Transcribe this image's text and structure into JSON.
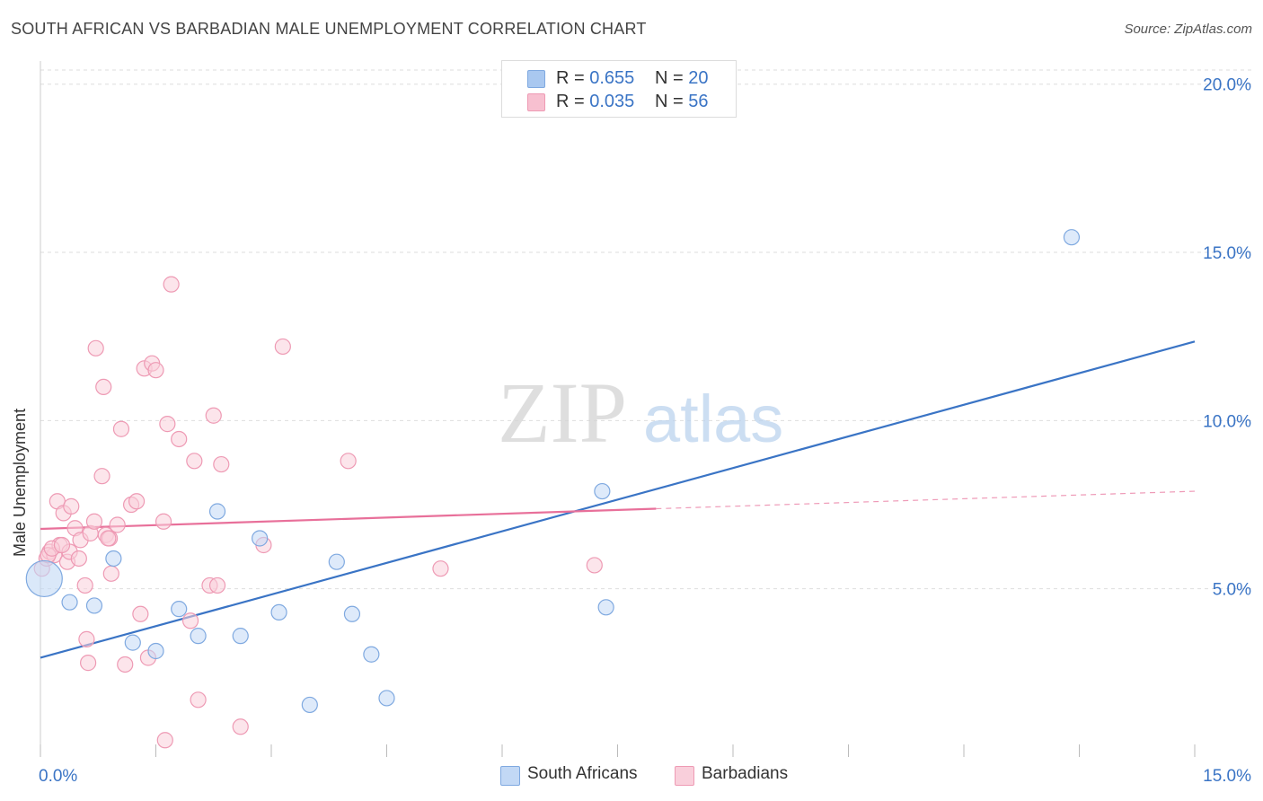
{
  "header": {
    "title": "SOUTH AFRICAN VS BARBADIAN MALE UNEMPLOYMENT CORRELATION CHART",
    "source": "Source: ZipAtlas.com"
  },
  "legend_top": {
    "rows": [
      {
        "r_label": "R =",
        "r_value": "0.655",
        "n_label": "N =",
        "n_value": "20",
        "color": "#a9c8f0",
        "border": "#7fa9e0"
      },
      {
        "r_label": "R =",
        "r_value": "0.035",
        "n_label": "N =",
        "n_value": "56",
        "color": "#f7c0d0",
        "border": "#ee9ab4"
      }
    ]
  },
  "legend_bottom": {
    "items": [
      {
        "label": "South Africans",
        "color": "#c2d8f5",
        "border": "#7fa9e0"
      },
      {
        "label": "Barbadians",
        "color": "#f9cfdb",
        "border": "#ee9ab4"
      }
    ]
  },
  "watermark": {
    "zip": "ZIP",
    "atlas": "atlas"
  },
  "chart_data": {
    "type": "scatter",
    "title": "SOUTH AFRICAN VS BARBADIAN MALE UNEMPLOYMENT CORRELATION CHART",
    "xlabel": "",
    "ylabel": "Male Unemployment",
    "xlim": [
      0,
      15
    ],
    "ylim": [
      0,
      20.5
    ],
    "x_tick_labels": [
      "0.0%",
      "15.0%"
    ],
    "y_ticks": [
      5,
      10,
      15,
      20
    ],
    "y_tick_labels": [
      "5.0%",
      "10.0%",
      "15.0%",
      "20.0%"
    ],
    "grid": true,
    "legend_position": "top-center",
    "colors": {
      "south_africans": "#3a74c5",
      "barbadians": "#e8709a"
    },
    "series": [
      {
        "name": "South Africans",
        "x": [
          0.05,
          0.38,
          0.7,
          0.95,
          1.2,
          1.5,
          1.8,
          2.05,
          2.3,
          2.6,
          2.85,
          3.1,
          3.5,
          3.85,
          4.05,
          4.3,
          4.5,
          7.3,
          7.35,
          13.4
        ],
        "y": [
          5.3,
          4.6,
          4.5,
          5.9,
          3.4,
          3.15,
          4.4,
          3.6,
          7.3,
          3.6,
          6.5,
          4.3,
          1.55,
          5.8,
          4.25,
          3.05,
          1.75,
          7.9,
          4.45,
          15.45
        ],
        "trend": {
          "x": [
            0,
            15
          ],
          "y": [
            2.95,
            12.35
          ]
        }
      },
      {
        "name": "Barbadians",
        "x": [
          0.02,
          0.08,
          0.12,
          0.18,
          0.22,
          0.25,
          0.3,
          0.35,
          0.38,
          0.4,
          0.45,
          0.5,
          0.52,
          0.58,
          0.6,
          0.65,
          0.7,
          0.72,
          0.8,
          0.82,
          0.85,
          0.9,
          0.92,
          1.0,
          1.05,
          1.1,
          1.18,
          1.25,
          1.3,
          1.35,
          1.4,
          1.45,
          1.6,
          1.62,
          1.65,
          1.8,
          1.95,
          2.0,
          2.05,
          2.2,
          2.25,
          2.3,
          2.35,
          2.6,
          2.9,
          3.15,
          4.0,
          5.2,
          7.2,
          0.1,
          0.15,
          0.28,
          0.62,
          0.88,
          1.5,
          1.7
        ],
        "y": [
          5.6,
          5.9,
          6.1,
          6.0,
          7.6,
          6.3,
          7.25,
          5.8,
          6.1,
          7.45,
          6.8,
          5.9,
          6.45,
          5.1,
          3.5,
          6.65,
          7.0,
          12.15,
          8.35,
          11.0,
          6.6,
          6.5,
          5.45,
          6.9,
          9.75,
          2.75,
          7.5,
          7.6,
          4.25,
          11.55,
          2.95,
          11.7,
          7.0,
          0.5,
          9.9,
          9.45,
          4.05,
          8.8,
          1.7,
          5.1,
          10.15,
          5.1,
          8.7,
          0.9,
          6.3,
          12.2,
          8.8,
          5.6,
          5.7,
          6.0,
          6.2,
          6.3,
          2.8,
          6.5,
          11.5,
          14.05
        ],
        "trend": {
          "x": [
            0,
            8
          ],
          "y": [
            6.78,
            7.38
          ]
        },
        "trend_dashed": {
          "x": [
            8,
            15
          ],
          "y": [
            7.38,
            7.9
          ]
        }
      }
    ]
  }
}
